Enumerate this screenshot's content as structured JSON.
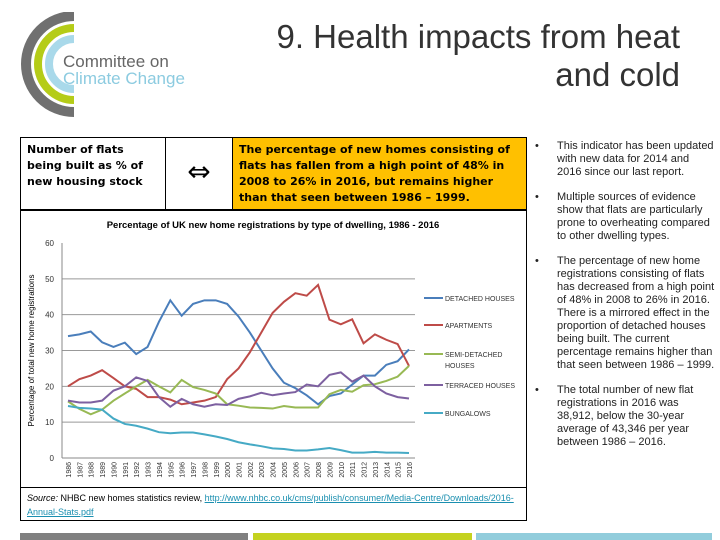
{
  "logo": {
    "line1": "Committee on",
    "line2": "Climate Change"
  },
  "title": "9. Health impacts from heat and cold",
  "indicator": {
    "name": "Number of flats being built as % of new housing stock",
    "trend_icon": "left-right-arrow",
    "trend_symbol": "⇔",
    "summary": "The percentage of new homes consisting of flats has fallen from a high point of 48% in 2008 to 26% in 2016, but remains higher than that seen between 1986 – 1999.",
    "summary_color": "#ffc000"
  },
  "bullets": [
    "This indicator has been updated with new data for 2014 and 2016 since our last report.",
    "Multiple sources of evidence show that flats are particularly prone to overheating compared to other dwelling types.",
    "The percentage of new home registrations consisting of flats has decreased from a high point of 48% in 2008 to 26% in 2016.  There is a mirrored effect in the proportion of detached houses being built.  The current percentage remains higher than that seen between 1986 – 1999.",
    "The total number of new flat registrations in 2016 was 38,912, below the 30-year average of 43,346  per year between 1986 – 2016."
  ],
  "source": {
    "label": "Source:",
    "text": " NHBC new homes statistics review, ",
    "link": "http://www.nhbc.co.uk/cms/publish/consumer/Media-Centre/Downloads/2016-Annual-Stats.pdf"
  },
  "chart_data": {
    "type": "line",
    "title": "Percentage of UK new home registrations by type of dwelling, 1986 - 2016",
    "xlabel": "",
    "ylabel": "Percentage of total new home registrations",
    "ylim": [
      0,
      60
    ],
    "yticks": [
      0,
      10,
      20,
      30,
      40,
      50,
      60
    ],
    "grid": true,
    "legend": "right",
    "x": [
      1986,
      1987,
      1988,
      1989,
      1990,
      1991,
      1992,
      1993,
      1994,
      1995,
      1996,
      1997,
      1998,
      1999,
      2000,
      2001,
      2002,
      2003,
      2004,
      2005,
      2006,
      2007,
      2008,
      2009,
      2010,
      2011,
      2012,
      2013,
      2014,
      2015,
      2016
    ],
    "series": [
      {
        "name": "DETACHED HOUSES",
        "color": "#4a7ebb",
        "values": [
          34,
          34.5,
          35.3,
          32.3,
          31,
          32.2,
          29,
          31,
          38,
          44,
          39.7,
          43,
          44,
          44,
          43,
          39.5,
          35,
          30,
          25,
          21,
          19.5,
          17.5,
          15,
          17.3,
          18,
          20.5,
          23,
          23,
          26,
          27,
          30.3
        ]
      },
      {
        "name": "APARTMENTS",
        "color": "#be4b48",
        "values": [
          20,
          22,
          23,
          24.5,
          22.3,
          20,
          19.3,
          17,
          17,
          16.3,
          15,
          15.5,
          16,
          17,
          22,
          25,
          29.5,
          35,
          40.5,
          43.6,
          46,
          45.3,
          48.3,
          38.6,
          37.3,
          38.7,
          32,
          34.5,
          33,
          31.8,
          25.7
        ]
      },
      {
        "name": "SEMI-DETACHED HOUSES",
        "color": "#98b954",
        "values": [
          15.8,
          13.7,
          12.2,
          13.5,
          16,
          18,
          20,
          21.8,
          20,
          18.3,
          21.8,
          19.8,
          19,
          18,
          15,
          14.6,
          14.1,
          14,
          13.8,
          14.5,
          14.1,
          14.1,
          14.1,
          17.8,
          19,
          18.5,
          20.3,
          20.6,
          21.5,
          22.7,
          25.7
        ]
      },
      {
        "name": "TERRACED HOUSES",
        "color": "#7d60a0",
        "values": [
          16,
          15.5,
          15.5,
          16,
          18.8,
          20,
          22.5,
          21.5,
          17,
          14.3,
          16.5,
          15,
          14.3,
          15,
          14.8,
          16.5,
          17.2,
          18.2,
          17.5,
          18,
          18.4,
          20.5,
          20,
          23.2,
          23.9,
          21.3,
          23,
          20,
          18,
          17,
          16.6
        ]
      },
      {
        "name": "BUNGALOWS",
        "color": "#46aac5",
        "values": [
          14.5,
          14,
          13.8,
          13.5,
          11,
          9.5,
          9,
          8.2,
          7.2,
          6.9,
          7.1,
          7.1,
          6.6,
          6,
          5.3,
          4.4,
          3.8,
          3.3,
          2.7,
          2.5,
          2.1,
          2.1,
          2.4,
          2.8,
          2.2,
          1.5,
          1.5,
          1.7,
          1.5,
          1.5,
          1.4
        ]
      }
    ]
  },
  "footer_colors": [
    "#808080",
    "#c4d21f",
    "#92cddc"
  ]
}
